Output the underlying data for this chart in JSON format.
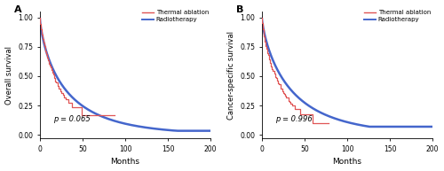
{
  "panel_A": {
    "label": "A",
    "ylabel": "Overall survival",
    "xlabel": "Months",
    "pvalue": "p = 0.065",
    "xlim": [
      0,
      200
    ],
    "ylim": [
      -0.03,
      1.05
    ],
    "xticks": [
      0,
      50,
      100,
      150,
      200
    ],
    "yticks": [
      0.0,
      0.25,
      0.5,
      0.75,
      1.0
    ]
  },
  "panel_B": {
    "label": "B",
    "ylabel": "Cancer-specific survival",
    "xlabel": "Months",
    "pvalue": "p = 0.996",
    "xlim": [
      0,
      200
    ],
    "ylim": [
      -0.03,
      1.05
    ],
    "xticks": [
      0,
      50,
      100,
      150,
      200
    ],
    "yticks": [
      0.0,
      0.25,
      0.5,
      0.75,
      1.0
    ]
  },
  "thermal_color": "#e05555",
  "radio_color": "#4466cc",
  "legend_labels": [
    "Thermal ablation",
    "Radiotherapy"
  ],
  "background_color": "#ffffff",
  "linewidth_blue": 1.8,
  "linewidth_red": 0.9
}
